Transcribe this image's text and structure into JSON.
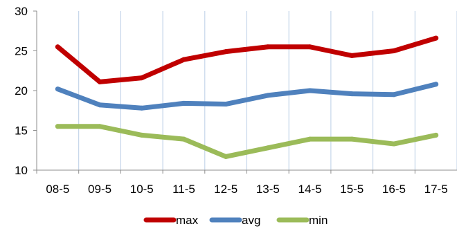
{
  "chart_data": {
    "type": "line",
    "title": "",
    "xlabel": "",
    "ylabel": "",
    "categories": [
      "08-5",
      "09-5",
      "10-5",
      "11-5",
      "12-5",
      "13-5",
      "14-5",
      "15-5",
      "16-5",
      "17-5"
    ],
    "ylim": [
      10,
      30
    ],
    "yticks": [
      10,
      15,
      20,
      25,
      30
    ],
    "grid": "vertical",
    "legend_position": "bottom",
    "series": [
      {
        "name": "max",
        "color": "#C00000",
        "values": [
          25.5,
          21.1,
          21.6,
          23.9,
          24.9,
          25.5,
          25.5,
          24.4,
          25.0,
          26.6
        ]
      },
      {
        "name": "avg",
        "color": "#4F81BD",
        "values": [
          20.2,
          18.2,
          17.8,
          18.4,
          18.3,
          19.4,
          20.0,
          19.6,
          19.5,
          20.8
        ]
      },
      {
        "name": "min",
        "color": "#9BBB59",
        "values": [
          15.5,
          15.5,
          14.4,
          13.9,
          11.7,
          12.8,
          13.9,
          13.9,
          13.3,
          14.4
        ]
      }
    ]
  }
}
